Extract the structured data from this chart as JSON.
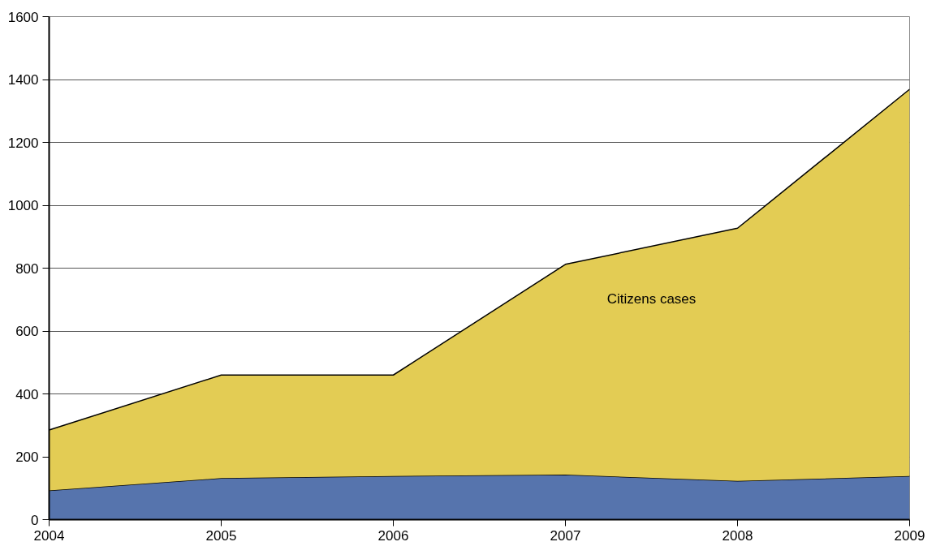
{
  "chart_data": {
    "type": "area",
    "stacked": true,
    "x": [
      2004,
      2005,
      2006,
      2007,
      2008,
      2009
    ],
    "series": [
      {
        "color": "#5674ad",
        "values": [
          93,
          132,
          139,
          143,
          123,
          139
        ]
      },
      {
        "name": "Citizens cases",
        "color": "#e3cc54",
        "values": [
          192,
          328,
          321,
          669,
          804,
          1230
        ]
      }
    ],
    "xlim": [
      2004,
      2009
    ],
    "xticks": [
      2004,
      2005,
      2006,
      2007,
      2008,
      2009
    ],
    "ylim": [
      0,
      1600
    ],
    "yticks": [
      0,
      200,
      400,
      600,
      800,
      1000,
      1200,
      1400,
      1600
    ],
    "grid": "y"
  }
}
